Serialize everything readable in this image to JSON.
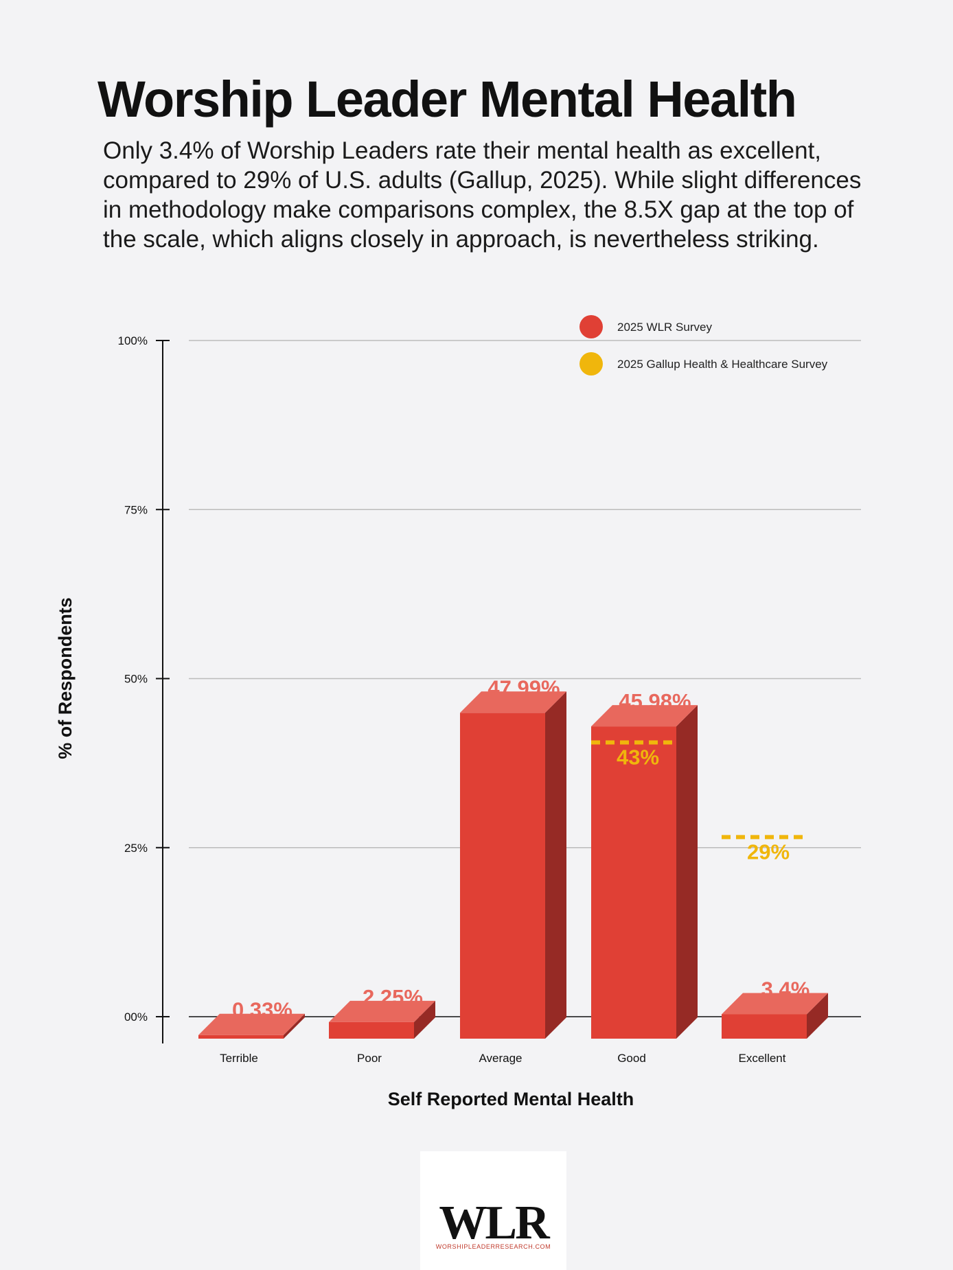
{
  "title": "Worship Leader Mental Health",
  "subtitle": "Only 3.4% of Worship Leaders rate their mental health as excellent, compared to 29% of U.S. adults (Gallup, 2025). While slight differences in methodology make comparisons complex, the 8.5X gap at the top of the scale, which aligns closely in approach, is nevertheless striking.",
  "chart_data": {
    "type": "bar",
    "categories": [
      "Terrible",
      "Poor",
      "Average",
      "Good",
      "Excellent"
    ],
    "series": [
      {
        "name": "2025 WLR Survey",
        "values": [
          0.33,
          2.25,
          47.99,
          45.98,
          3.4
        ],
        "labels": [
          "0.33%",
          "2.25%",
          "47.99%",
          "45.98%",
          "3.4%"
        ]
      },
      {
        "name": "2025 Gallup Health & Healthcare Survey",
        "values": [
          null,
          null,
          null,
          43,
          29
        ],
        "labels": [
          null,
          null,
          null,
          "43%",
          "29%"
        ]
      }
    ],
    "xlabel": "Self Reported Mental Health",
    "ylabel": "% of Respondents",
    "ylim": [
      0,
      100
    ],
    "yticks": [
      0,
      25,
      50,
      75,
      100
    ],
    "ytick_labels": [
      "00%",
      "25%",
      "50%",
      "75%",
      "100%"
    ],
    "legend_position": "top-right"
  },
  "colors": {
    "wlr_front": "#e04035",
    "wlr_top": "#e8685d",
    "wlr_side": "#962a25",
    "wlr_label": "#e8685d",
    "gallup": "#f0b60c",
    "grid": "#bbbbbb",
    "axis": "#111111"
  },
  "logo": {
    "mark": "WLR",
    "url": "WORSHIPLEADERRESEARCH.COM"
  }
}
